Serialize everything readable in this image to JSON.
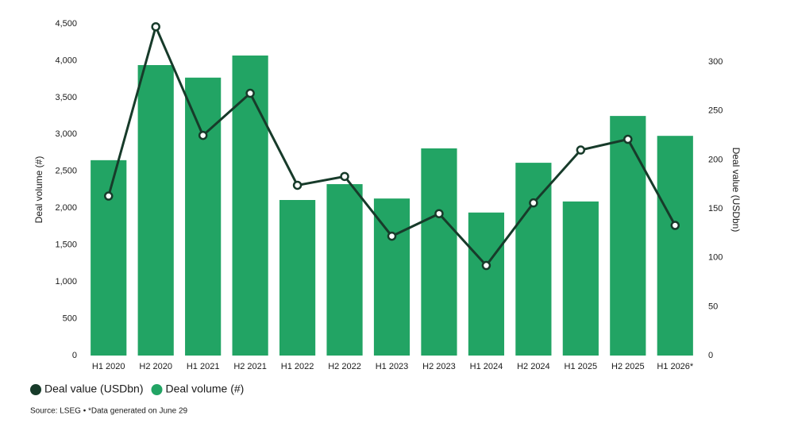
{
  "chart_data": {
    "type": "bar-line",
    "categories": [
      "H1 2020",
      "H2 2020",
      "H1 2021",
      "H2 2021",
      "H1 2022",
      "H2 2022",
      "H1 2023",
      "H2 2023",
      "H1 2024",
      "H2 2024",
      "H1 2025",
      "H2 2025",
      "H1 2026*"
    ],
    "series": [
      {
        "name": "Deal value (USDbn)",
        "color": "#173b2a",
        "type": "line",
        "axis": "y2",
        "values": [
          163,
          336,
          225,
          268,
          174,
          183,
          122,
          145,
          92,
          156,
          210,
          221,
          133
        ]
      },
      {
        "name": "Deal volume (#)",
        "color": "#22a464",
        "type": "bar",
        "values": [
          2650,
          3940,
          3770,
          4070,
          2110,
          2325,
          2130,
          2810,
          1940,
          2615,
          2090,
          3250,
          2980
        ]
      }
    ],
    "ylabel": "Deal volume (#)",
    "y2label": "Deal value (USDbn)",
    "ylim": [
      0,
      4500
    ],
    "yticks": [
      0,
      500,
      {
        "value": 1000,
        "label": "1,000"
      },
      {
        "value": 1500,
        "label": "1,500"
      },
      {
        "value": 2000,
        "label": "2,000"
      },
      {
        "value": 2500,
        "label": "2,500"
      },
      {
        "value": 3000,
        "label": "3,000"
      },
      {
        "value": 3500,
        "label": "3,500"
      },
      {
        "value": 4000,
        "label": "4,000"
      },
      {
        "value": 4500,
        "label": "4,500"
      }
    ],
    "y2lim": [
      0,
      339
    ],
    "y2ticks": [
      0,
      50,
      100,
      150,
      200,
      250,
      300
    ],
    "source": "Source: LSEG • *Data generated on June 29"
  }
}
